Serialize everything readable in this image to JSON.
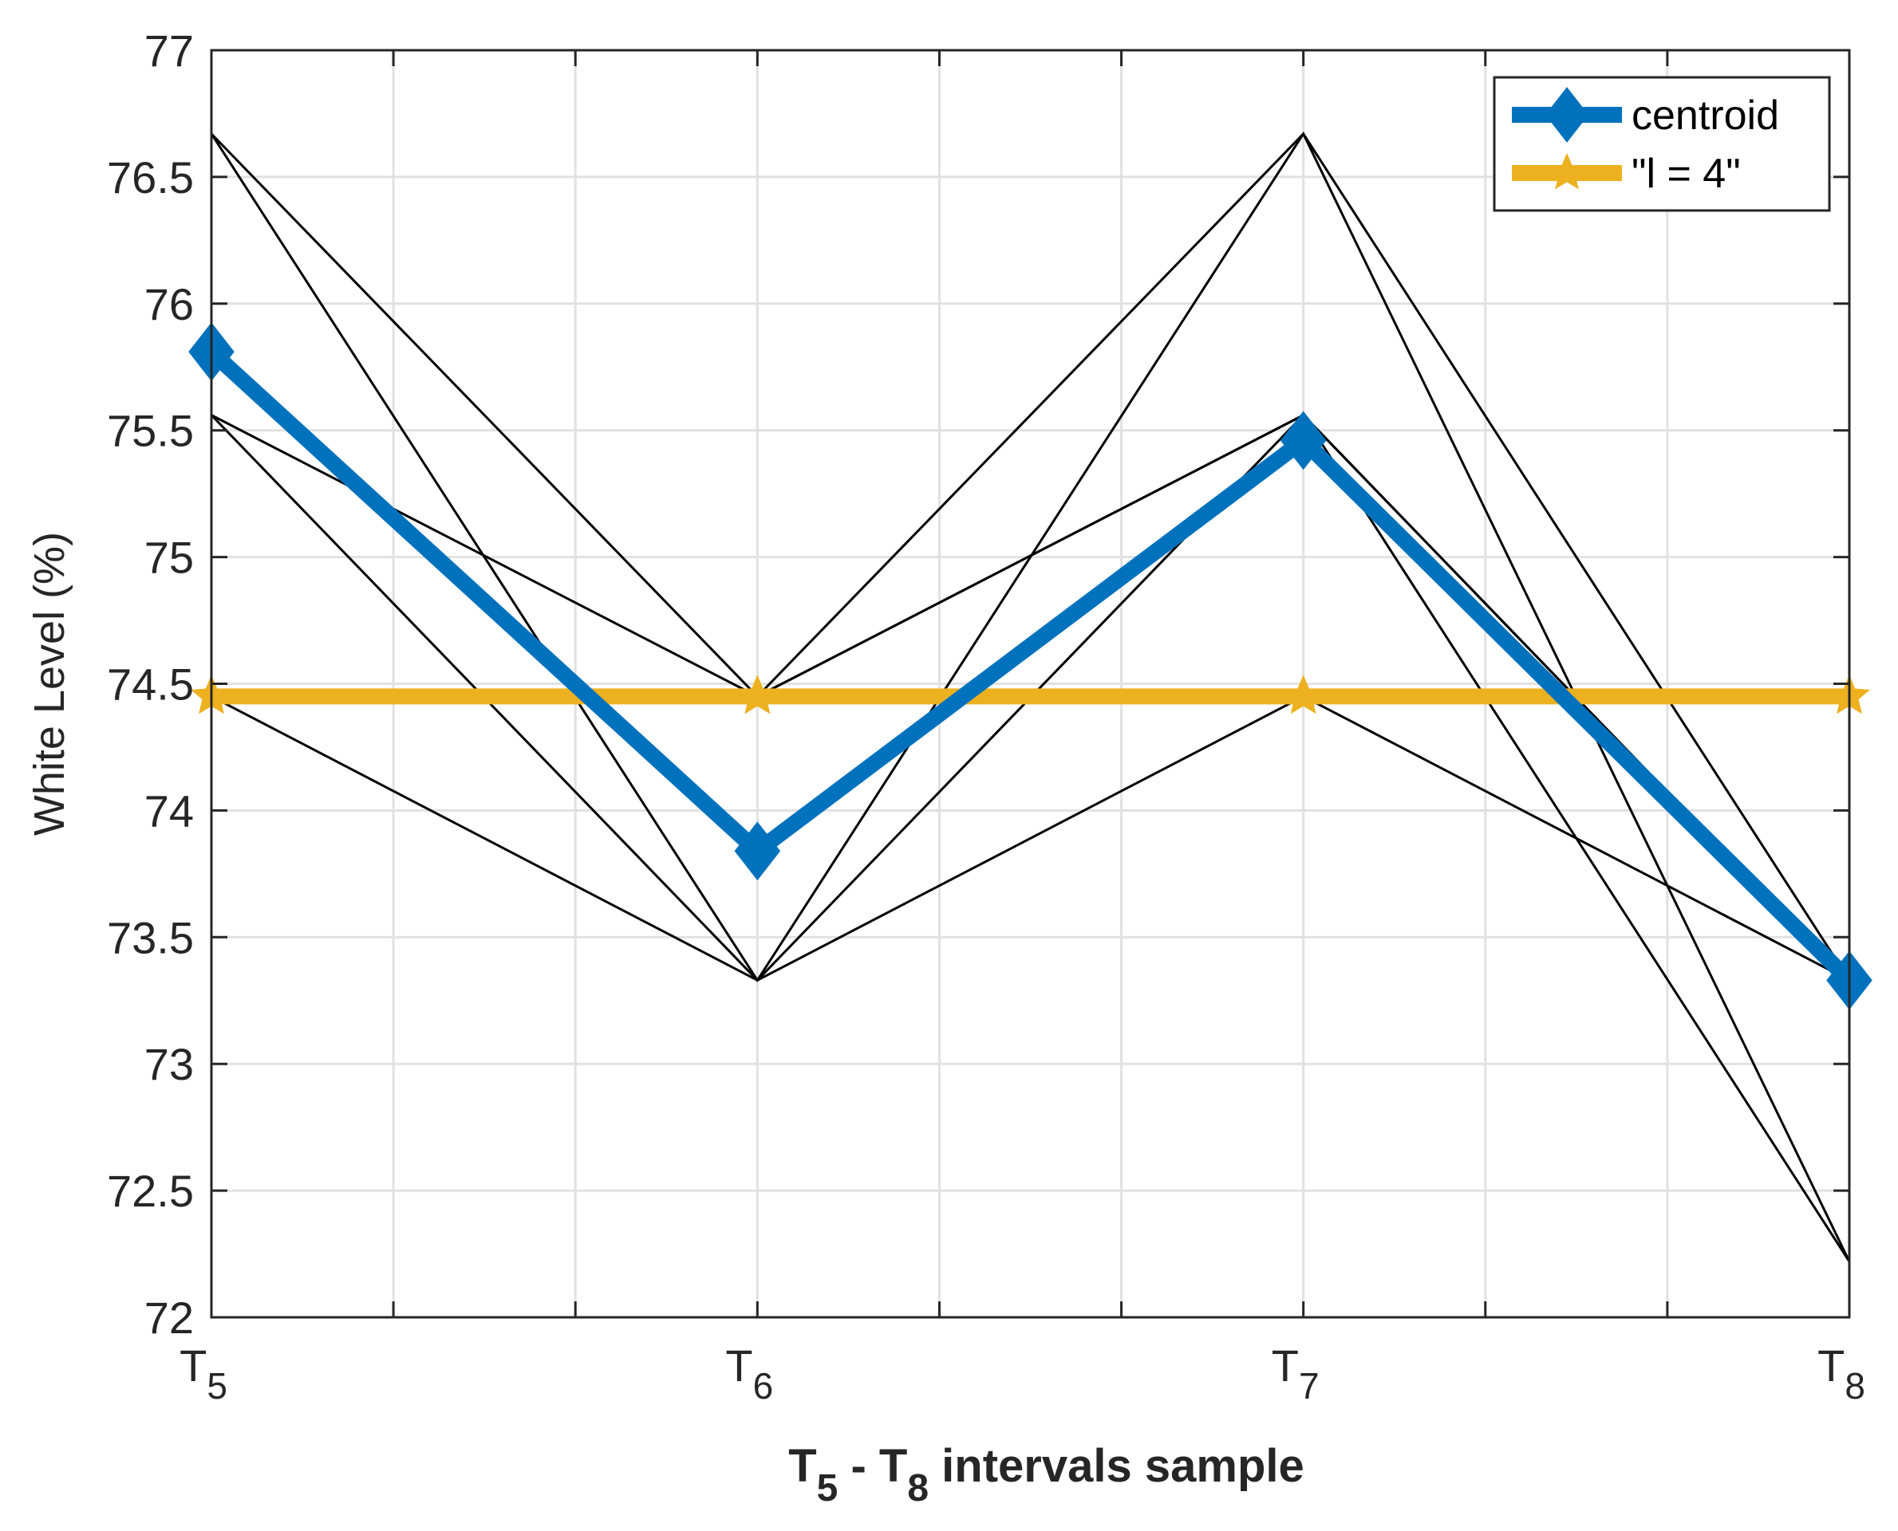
{
  "chart_data": {
    "type": "line",
    "title": "",
    "xlabel": {
      "parts": [
        {
          "text": "T"
        },
        {
          "text": "5",
          "sub": true
        },
        {
          "text": " - T"
        },
        {
          "text": "8",
          "sub": true
        },
        {
          "text": " intervals sample"
        }
      ]
    },
    "ylabel": "White Level (%)",
    "ylim": [
      72,
      77
    ],
    "yticks": [
      "72",
      "72.5",
      "73",
      "73.5",
      "74",
      "74.5",
      "75",
      "75.5",
      "76",
      "76.5",
      "77"
    ],
    "xticks": [
      {
        "main": "T",
        "sub": "5"
      },
      {
        "main": "T",
        "sub": "6"
      },
      {
        "main": "T",
        "sub": "7"
      },
      {
        "main": "T",
        "sub": "8"
      }
    ],
    "grid": true,
    "legend_position": "top-right",
    "series": [
      {
        "name": "centroid",
        "color": "#0072BD",
        "marker": "diamond",
        "style": "thick",
        "values": [
          75.81,
          73.84,
          75.46,
          73.33
        ]
      },
      {
        "name": "\"l = 4\"",
        "color": "#EDB120",
        "marker": "star",
        "style": "thick",
        "values": [
          74.45,
          74.45,
          74.45,
          74.45
        ]
      }
    ],
    "thin_lines_color": "#000000",
    "thin_lines": [
      [
        76.67,
        74.45,
        75.56,
        73.33
      ],
      [
        76.67,
        73.33,
        74.45,
        73.33
      ],
      [
        75.56,
        74.45,
        76.67,
        72.22
      ],
      [
        75.56,
        73.33,
        75.56,
        72.22
      ],
      [
        74.45,
        73.33,
        76.67,
        73.33
      ],
      [
        74.45,
        74.45,
        75.56,
        73.33
      ]
    ]
  }
}
